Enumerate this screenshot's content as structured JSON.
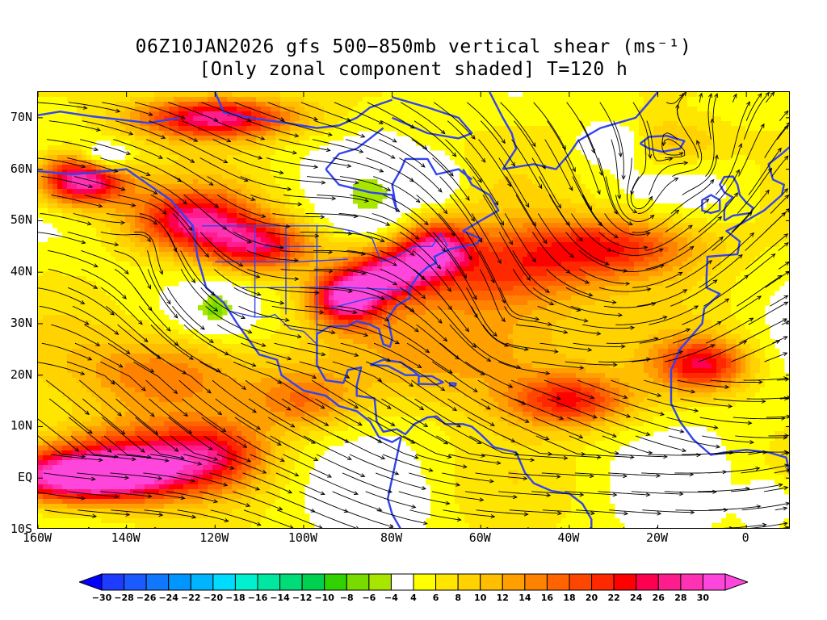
{
  "title": {
    "line1": "06Z10JAN2026 gfs 500−850mb vertical shear (ms⁻¹)",
    "line2": "[Only zonal component shaded] T=120 h"
  },
  "map": {
    "lon_range": [
      -160,
      10
    ],
    "lat_range": [
      -10,
      75
    ],
    "lat_labels": [
      "70N",
      "60N",
      "50N",
      "40N",
      "30N",
      "20N",
      "10N",
      "EQ",
      "10S"
    ],
    "lat_values": [
      70,
      60,
      50,
      40,
      30,
      20,
      10,
      0,
      -10
    ],
    "lon_labels": [
      "160W",
      "140W",
      "120W",
      "100W",
      "80W",
      "60W",
      "40W",
      "20W",
      "0"
    ],
    "lon_values": [
      -160,
      -140,
      -120,
      -100,
      -80,
      -60,
      -40,
      -20,
      0
    ],
    "coastline_color": "#3344ee",
    "streamline_color": "#000000"
  },
  "colorbar": {
    "levels": [
      -30,
      -28,
      -26,
      -24,
      -22,
      -20,
      -18,
      -16,
      -14,
      -12,
      -10,
      -8,
      -6,
      -4,
      4,
      6,
      8,
      10,
      12,
      14,
      16,
      18,
      20,
      22,
      24,
      26,
      28,
      30
    ],
    "labels": [
      "−30",
      "−28",
      "−26",
      "−24",
      "−22",
      "−20",
      "−18",
      "−16",
      "−14",
      "−12",
      "−10",
      "−8",
      "−6",
      "−4",
      "4",
      "6",
      "8",
      "10",
      "12",
      "14",
      "16",
      "18",
      "20",
      "22",
      "24",
      "26",
      "28",
      "30"
    ],
    "colors": [
      "#0000ff",
      "#1e3cff",
      "#1a5aff",
      "#0f78ff",
      "#0096ff",
      "#00b4ff",
      "#00dcff",
      "#00f0d0",
      "#00e8a0",
      "#00dc78",
      "#00d050",
      "#32d200",
      "#78dc00",
      "#a8e600",
      "#ffffff",
      "#ffff00",
      "#ffe600",
      "#ffd200",
      "#ffbe00",
      "#ffa000",
      "#ff8200",
      "#ff6400",
      "#ff4600",
      "#ff2800",
      "#ff0000",
      "#ff0050",
      "#ff1c8c",
      "#ff32b4",
      "#ff46dc"
    ],
    "below_color": "#0000ff",
    "above_color": "#ff46dc"
  }
}
